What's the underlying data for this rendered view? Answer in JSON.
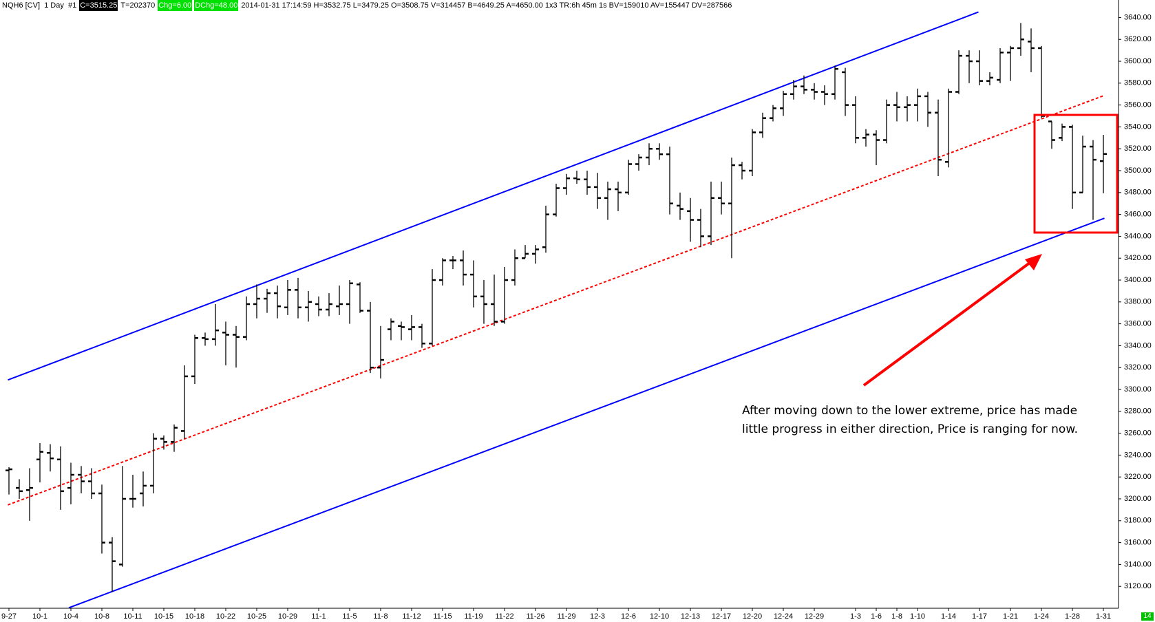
{
  "chart_data": {
    "type": "ohlc",
    "info": [
      {
        "text": "NQH6 [CV]  1 Day  #1"
      },
      {
        "text": "C=3515.25",
        "highlight": "#000000",
        "text_color": "#ffffff"
      },
      {
        "text": "T=202370"
      },
      {
        "text": "Chg=6.00",
        "highlight": "#00e000",
        "text_color": "#ffffff"
      },
      {
        "text": "DChg=48.00",
        "highlight": "#00e000",
        "text_color": "#ffffff"
      },
      {
        "text": "2014-01-31 17:14:59 H=3532.75 L=3479.25 O=3508.75 V=314457 B=4649.25 A=4650.00 1x3 TR:6h 45m 1s BV=159010 AV=155447 DV=287566"
      }
    ],
    "categories": [
      "9-27",
      null,
      null,
      "10-1",
      null,
      null,
      "10-4",
      null,
      null,
      "10-8",
      null,
      null,
      "10-11",
      null,
      null,
      "10-15",
      null,
      null,
      "10-18",
      null,
      null,
      "10-22",
      null,
      null,
      "10-25",
      null,
      null,
      "10-29",
      null,
      null,
      "11-1",
      null,
      null,
      "11-5",
      null,
      null,
      "11-8",
      null,
      null,
      "11-12",
      null,
      null,
      "11-15",
      null,
      null,
      "11-19",
      null,
      null,
      "11-22",
      null,
      null,
      "11-26",
      null,
      null,
      "11-29",
      null,
      null,
      "12-3",
      null,
      null,
      "12-6",
      null,
      null,
      "12-10",
      null,
      null,
      "12-13",
      null,
      null,
      "12-17",
      null,
      null,
      "12-20",
      null,
      null,
      "12-24",
      null,
      null,
      "12-29",
      null,
      null,
      null,
      "1-3",
      null,
      "1-6",
      null,
      "1-8",
      null,
      "1-10",
      null,
      null,
      "1-14",
      null,
      null,
      "1-17",
      null,
      null,
      "1-21",
      null,
      null,
      "1-24",
      null,
      null,
      "1-28",
      null,
      null,
      "1-31"
    ],
    "bars": [
      [
        3226,
        3229,
        3204,
        3227
      ],
      [
        3210,
        3218,
        3200,
        3207
      ],
      [
        3208,
        3228,
        3180,
        3210
      ],
      [
        3236,
        3251,
        3215,
        3243
      ],
      [
        3242,
        3250,
        3225,
        3237
      ],
      [
        3236,
        3248,
        3190,
        3207
      ],
      [
        3210,
        3233,
        3195,
        3222
      ],
      [
        3222,
        3230,
        3205,
        3216
      ],
      [
        3216,
        3228,
        3200,
        3205
      ],
      [
        3205,
        3213,
        3150,
        3160
      ],
      [
        3160,
        3165,
        3115,
        3143
      ],
      [
        3140,
        3230,
        3138,
        3200
      ],
      [
        3200,
        3222,
        3192,
        3200
      ],
      [
        3205,
        3225,
        3193,
        3212
      ],
      [
        3212,
        3260,
        3205,
        3255
      ],
      [
        3255,
        3258,
        3245,
        3252
      ],
      [
        3252,
        3268,
        3243,
        3265
      ],
      [
        3262,
        3322,
        3255,
        3312
      ],
      [
        3312,
        3350,
        3305,
        3347
      ],
      [
        3347,
        3352,
        3340,
        3346
      ],
      [
        3346,
        3378,
        3340,
        3354
      ],
      [
        3352,
        3362,
        3322,
        3350
      ],
      [
        3350,
        3358,
        3320,
        3348
      ],
      [
        3348,
        3385,
        3345,
        3378
      ],
      [
        3378,
        3396,
        3365,
        3383
      ],
      [
        3383,
        3392,
        3370,
        3388
      ],
      [
        3388,
        3395,
        3365,
        3376
      ],
      [
        3375,
        3400,
        3368,
        3391
      ],
      [
        3391,
        3402,
        3365,
        3375
      ],
      [
        3375,
        3390,
        3362,
        3380
      ],
      [
        3378,
        3385,
        3367,
        3373
      ],
      [
        3373,
        3388,
        3367,
        3378
      ],
      [
        3376,
        3395,
        3368,
        3378
      ],
      [
        3378,
        3400,
        3360,
        3397
      ],
      [
        3396,
        3398,
        3370,
        3372
      ],
      [
        3372,
        3380,
        3315,
        3320
      ],
      [
        3320,
        3358,
        3310,
        3327
      ],
      [
        3355,
        3365,
        3345,
        3362
      ],
      [
        3358,
        3362,
        3345,
        3357
      ],
      [
        3355,
        3368,
        3345,
        3357
      ],
      [
        3357,
        3360,
        3338,
        3342
      ],
      [
        3342,
        3410,
        3340,
        3400
      ],
      [
        3400,
        3420,
        3395,
        3418
      ],
      [
        3418,
        3422,
        3410,
        3418
      ],
      [
        3418,
        3427,
        3395,
        3405
      ],
      [
        3405,
        3418,
        3375,
        3385
      ],
      [
        3385,
        3400,
        3360,
        3378
      ],
      [
        3378,
        3405,
        3358,
        3362
      ],
      [
        3362,
        3412,
        3360,
        3400
      ],
      [
        3400,
        3428,
        3395,
        3420
      ],
      [
        3420,
        3432,
        3420,
        3424
      ],
      [
        3424,
        3432,
        3415,
        3428
      ],
      [
        3430,
        3468,
        3425,
        3460
      ],
      [
        3460,
        3488,
        3458,
        3484
      ],
      [
        3484,
        3497,
        3478,
        3493
      ],
      [
        3493,
        3500,
        3488,
        3492
      ],
      [
        3492,
        3500,
        3478,
        3485
      ],
      [
        3485,
        3498,
        3465,
        3475
      ],
      [
        3475,
        3490,
        3455,
        3483
      ],
      [
        3483,
        3490,
        3463,
        3480
      ],
      [
        3480,
        3510,
        3478,
        3506
      ],
      [
        3506,
        3515,
        3500,
        3512
      ],
      [
        3512,
        3525,
        3505,
        3520
      ],
      [
        3520,
        3525,
        3510,
        3515
      ],
      [
        3515,
        3522,
        3460,
        3470
      ],
      [
        3468,
        3480,
        3455,
        3465
      ],
      [
        3463,
        3475,
        3435,
        3455
      ],
      [
        3455,
        3465,
        3430,
        3440
      ],
      [
        3440,
        3490,
        3432,
        3475
      ],
      [
        3475,
        3490,
        3460,
        3470
      ],
      [
        3470,
        3512,
        3420,
        3505
      ],
      [
        3505,
        3508,
        3492,
        3500
      ],
      [
        3500,
        3538,
        3495,
        3535
      ],
      [
        3535,
        3553,
        3530,
        3548
      ],
      [
        3548,
        3560,
        3545,
        3557
      ],
      [
        3557,
        3573,
        3550,
        3570
      ],
      [
        3570,
        3583,
        3565,
        3577
      ],
      [
        3577,
        3587,
        3570,
        3574
      ],
      [
        3574,
        3580,
        3565,
        3572
      ],
      [
        3572,
        3578,
        3560,
        3570
      ],
      [
        3570,
        3596,
        3565,
        3593
      ],
      [
        3590,
        3594,
        3550,
        3560
      ],
      [
        3560,
        3568,
        3525,
        3530
      ],
      [
        3530,
        3538,
        3522,
        3533
      ],
      [
        3533,
        3537,
        3505,
        3528
      ],
      [
        3528,
        3565,
        3525,
        3560
      ],
      [
        3560,
        3572,
        3545,
        3558
      ],
      [
        3558,
        3568,
        3545,
        3560
      ],
      [
        3560,
        3575,
        3545,
        3568
      ],
      [
        3568,
        3572,
        3540,
        3553
      ],
      [
        3553,
        3565,
        3495,
        3510
      ],
      [
        3508,
        3575,
        3503,
        3572
      ],
      [
        3572,
        3610,
        3570,
        3605
      ],
      [
        3605,
        3610,
        3580,
        3600
      ],
      [
        3600,
        3610,
        3578,
        3582
      ],
      [
        3582,
        3590,
        3578,
        3585
      ],
      [
        3583,
        3612,
        3580,
        3608
      ],
      [
        3608,
        3614,
        3582,
        3612
      ],
      [
        3612,
        3635,
        3605,
        3620
      ],
      [
        3618,
        3630,
        3590,
        3612
      ],
      [
        3612,
        3614,
        3548,
        3550
      ],
      [
        3545,
        3545,
        3520,
        3528
      ],
      [
        3530,
        3543,
        3527,
        3540
      ],
      [
        3540,
        3542,
        3465,
        3480
      ],
      [
        3480,
        3532,
        3480,
        3522
      ],
      [
        3522,
        3528,
        3455,
        3510
      ],
      [
        3508.75,
        3532.75,
        3479.25,
        3515.25
      ]
    ],
    "bar_color": "#000000",
    "trendlines": [
      {
        "color": "#0000ff",
        "dashed": false,
        "x": [
          -0.1,
          93.9
        ],
        "y": [
          3308.7,
          3645
        ]
      },
      {
        "color": "#0000ff",
        "dashed": false,
        "x": [
          5.8,
          106.1
        ],
        "y": [
          3100.4,
          3456.5
        ]
      },
      {
        "color": "#ff0000",
        "dashed": true,
        "x": [
          -0.1,
          106.1
        ],
        "y": [
          3194.5,
          3568.8
        ]
      }
    ],
    "ylim": [
      3100,
      3656
    ],
    "yticks": [
      {
        "value": 3120,
        "label": "3120.00"
      },
      {
        "value": 3140,
        "label": "3140.00"
      },
      {
        "value": 3160,
        "label": "3160.00"
      },
      {
        "value": 3180,
        "label": "3180.00"
      },
      {
        "value": 3200,
        "label": "3200.00"
      },
      {
        "value": 3220,
        "label": "3220.00"
      },
      {
        "value": 3240,
        "label": "3240.00"
      },
      {
        "value": 3260,
        "label": "3260.00"
      },
      {
        "value": 3280,
        "label": "3280.00"
      },
      {
        "value": 3300,
        "label": "3300.00"
      },
      {
        "value": 3320,
        "label": "3320.00"
      },
      {
        "value": 3340,
        "label": "3340.00"
      },
      {
        "value": 3360,
        "label": "3360.00"
      },
      {
        "value": 3380,
        "label": "3380.00"
      },
      {
        "value": 3400,
        "label": "3400.00"
      },
      {
        "value": 3420,
        "label": "3420.00"
      },
      {
        "value": 3440,
        "label": "3440.00"
      },
      {
        "value": 3460,
        "label": "3460.00"
      },
      {
        "value": 3480,
        "label": "3480.00"
      },
      {
        "value": 3500,
        "label": "3500.00"
      },
      {
        "value": 3520,
        "label": "3520.00"
      },
      {
        "value": 3540,
        "label": "3540.00"
      },
      {
        "value": 3560,
        "label": "3560.00"
      },
      {
        "value": 3580,
        "label": "3580.00"
      },
      {
        "value": 3600,
        "label": "3600.00"
      },
      {
        "value": 3620,
        "label": "3620.00"
      },
      {
        "value": 3640,
        "label": "3640.00"
      }
    ],
    "annotation": [
      "After moving down to the lower extreme, price has made",
      "little progress in either direction, Price is ranging for now."
    ],
    "corner_label": "14"
  }
}
